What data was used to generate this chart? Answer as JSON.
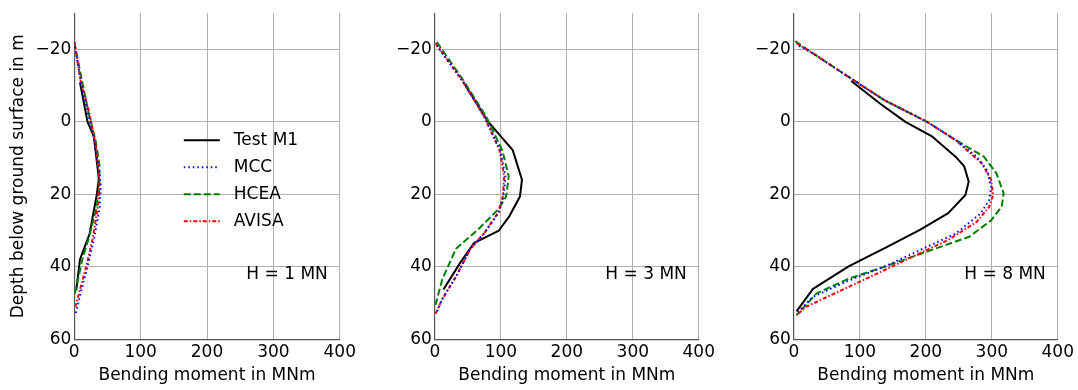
{
  "chart_data": [
    {
      "type": "line",
      "xlabel": "Bending moment in MNm",
      "ylabel": "Depth below ground surface in m",
      "xlim": [
        0,
        400
      ],
      "xticks": [
        0,
        100,
        200,
        300,
        400
      ],
      "ylim": [
        60,
        -30
      ],
      "yticks": [
        -20,
        0,
        20,
        40,
        60
      ],
      "grid": true,
      "legend": "center right",
      "marker": "none",
      "annotations": [
        "H = 1 MN"
      ],
      "series": [
        {
          "name": "Test M1",
          "color": "#000000",
          "line_style": "solid",
          "x": [
            8.5,
            20,
            29.5,
            37,
            34,
            28,
            23,
            8.5,
            3
          ],
          "values": [
            -10.9,
            0,
            4,
            15.7,
            20,
            26,
            31,
            38,
            46.5
          ]
        },
        {
          "name": "MCC",
          "color": "#0000ff",
          "line_style": "dotted",
          "x": [
            0,
            10,
            20,
            30,
            38,
            40,
            38,
            30,
            20,
            10,
            2
          ],
          "values": [
            -22,
            -11,
            -3,
            5,
            14,
            18,
            24,
            32,
            40,
            47,
            53
          ]
        },
        {
          "name": "HCEA",
          "color": "#008000",
          "line_style": "dashed",
          "x": [
            0,
            12,
            22,
            32,
            38,
            38,
            33,
            22,
            12,
            4,
            0
          ],
          "values": [
            -22,
            -11,
            -2,
            5,
            12,
            18,
            24,
            32,
            38,
            45,
            48
          ]
        },
        {
          "name": "AVISA",
          "color": "#ff0000",
          "line_style": "dashdot",
          "x": [
            0,
            10,
            22,
            32,
            37,
            38,
            35,
            28,
            18,
            9,
            2
          ],
          "values": [
            -22,
            -11,
            -3,
            6,
            14,
            19,
            24,
            32,
            40,
            46,
            51
          ]
        }
      ]
    },
    {
      "type": "line",
      "xlabel": "Bending moment in MNm",
      "xlim": [
        0,
        400
      ],
      "xticks": [
        0,
        100,
        200,
        300,
        400
      ],
      "ylim": [
        60,
        -30
      ],
      "yticks": [
        -20,
        0,
        20,
        40,
        60
      ],
      "grid": true,
      "marker": "none",
      "annotations": [
        "H = 3 MN"
      ],
      "series": [
        {
          "color": "#000000",
          "line_style": "solid",
          "x": [
            43,
            81,
            118,
            132,
            129,
            113,
            97,
            59,
            38,
            13
          ],
          "values": [
            -11,
            0,
            7.8,
            16,
            20.6,
            26,
            30,
            33.5,
            39,
            46.3
          ]
        },
        {
          "color": "#0000ff",
          "line_style": "dotted",
          "x": [
            3,
            43,
            75,
            99,
            107,
            104,
            97,
            75,
            54,
            32,
            11,
            3
          ],
          "values": [
            -21,
            -11,
            -1.4,
            7.8,
            15,
            20.6,
            25,
            30.7,
            35,
            42.7,
            49,
            52.5
          ]
        },
        {
          "color": "#008000",
          "line_style": "dashed",
          "x": [
            3,
            43,
            78,
            102,
            112,
            108,
            97,
            65,
            32,
            11,
            1
          ],
          "values": [
            -22,
            -11.5,
            -1.4,
            7.8,
            15,
            20.6,
            24,
            29.8,
            35,
            43.6,
            50.5
          ]
        },
        {
          "color": "#ff0000",
          "line_style": "dashdot",
          "x": [
            1,
            43,
            75,
            98,
            105,
            103,
            96,
            75,
            54,
            32,
            11,
            1
          ],
          "values": [
            -21.7,
            -11,
            -1.4,
            7.8,
            15,
            20.6,
            25,
            30.7,
            35,
            42.7,
            49,
            53
          ]
        }
      ]
    },
    {
      "type": "line",
      "xlabel": "Bending moment in MNm",
      "xlim": [
        0,
        400
      ],
      "xticks": [
        0,
        100,
        200,
        300,
        400
      ],
      "ylim": [
        60,
        -30
      ],
      "yticks": [
        -20,
        0,
        20,
        40,
        60
      ],
      "grid": true,
      "marker": "none",
      "annotations": [
        "H = 8 MN"
      ],
      "series": [
        {
          "color": "#000000",
          "line_style": "solid",
          "x": [
            87,
            131,
            169,
            210,
            245,
            258,
            265,
            260,
            234,
            191,
            137,
            83,
            29,
            4
          ],
          "values": [
            -11.3,
            -5,
            0,
            4.1,
            9.6,
            12.2,
            16.5,
            20.2,
            25.2,
            29.8,
            34.9,
            39.9,
            46.1,
            52.3
          ]
        },
        {
          "color": "#0000ff",
          "line_style": "dotted",
          "x": [
            8,
            29,
            83,
            137,
            202,
            245,
            277,
            293,
            299,
            296,
            283,
            245,
            191,
            137,
            83,
            29,
            6
          ],
          "values": [
            -21,
            -18.9,
            -12.4,
            -6,
            0,
            5,
            9.6,
            13.4,
            18,
            21.6,
            25.3,
            30.9,
            35.4,
            40,
            43.8,
            48.3,
            52.5
          ]
        },
        {
          "color": "#008000",
          "line_style": "dashed",
          "x": [
            2,
            29,
            83,
            137,
            202,
            245,
            288,
            307,
            318,
            315,
            299,
            266,
            202,
            137,
            83,
            34,
            4
          ],
          "values": [
            -22.3,
            -18.9,
            -12.4,
            -6,
            0,
            5,
            9.6,
            14.2,
            19.7,
            23.4,
            27.2,
            31.7,
            35.8,
            40,
            43.3,
            47.4,
            53.4
          ]
        },
        {
          "color": "#ff0000",
          "line_style": "dashdot",
          "x": [
            4,
            29,
            83,
            137,
            202,
            245,
            285,
            299,
            302,
            296,
            277,
            234,
            180,
            126,
            72,
            18,
            4
          ],
          "values": [
            -21.7,
            -18.9,
            -12.4,
            -6,
            0,
            5,
            11.5,
            16,
            20.2,
            23.5,
            27.6,
            32.6,
            37.2,
            41.9,
            46.5,
            51.1,
            53.4
          ]
        }
      ]
    }
  ]
}
